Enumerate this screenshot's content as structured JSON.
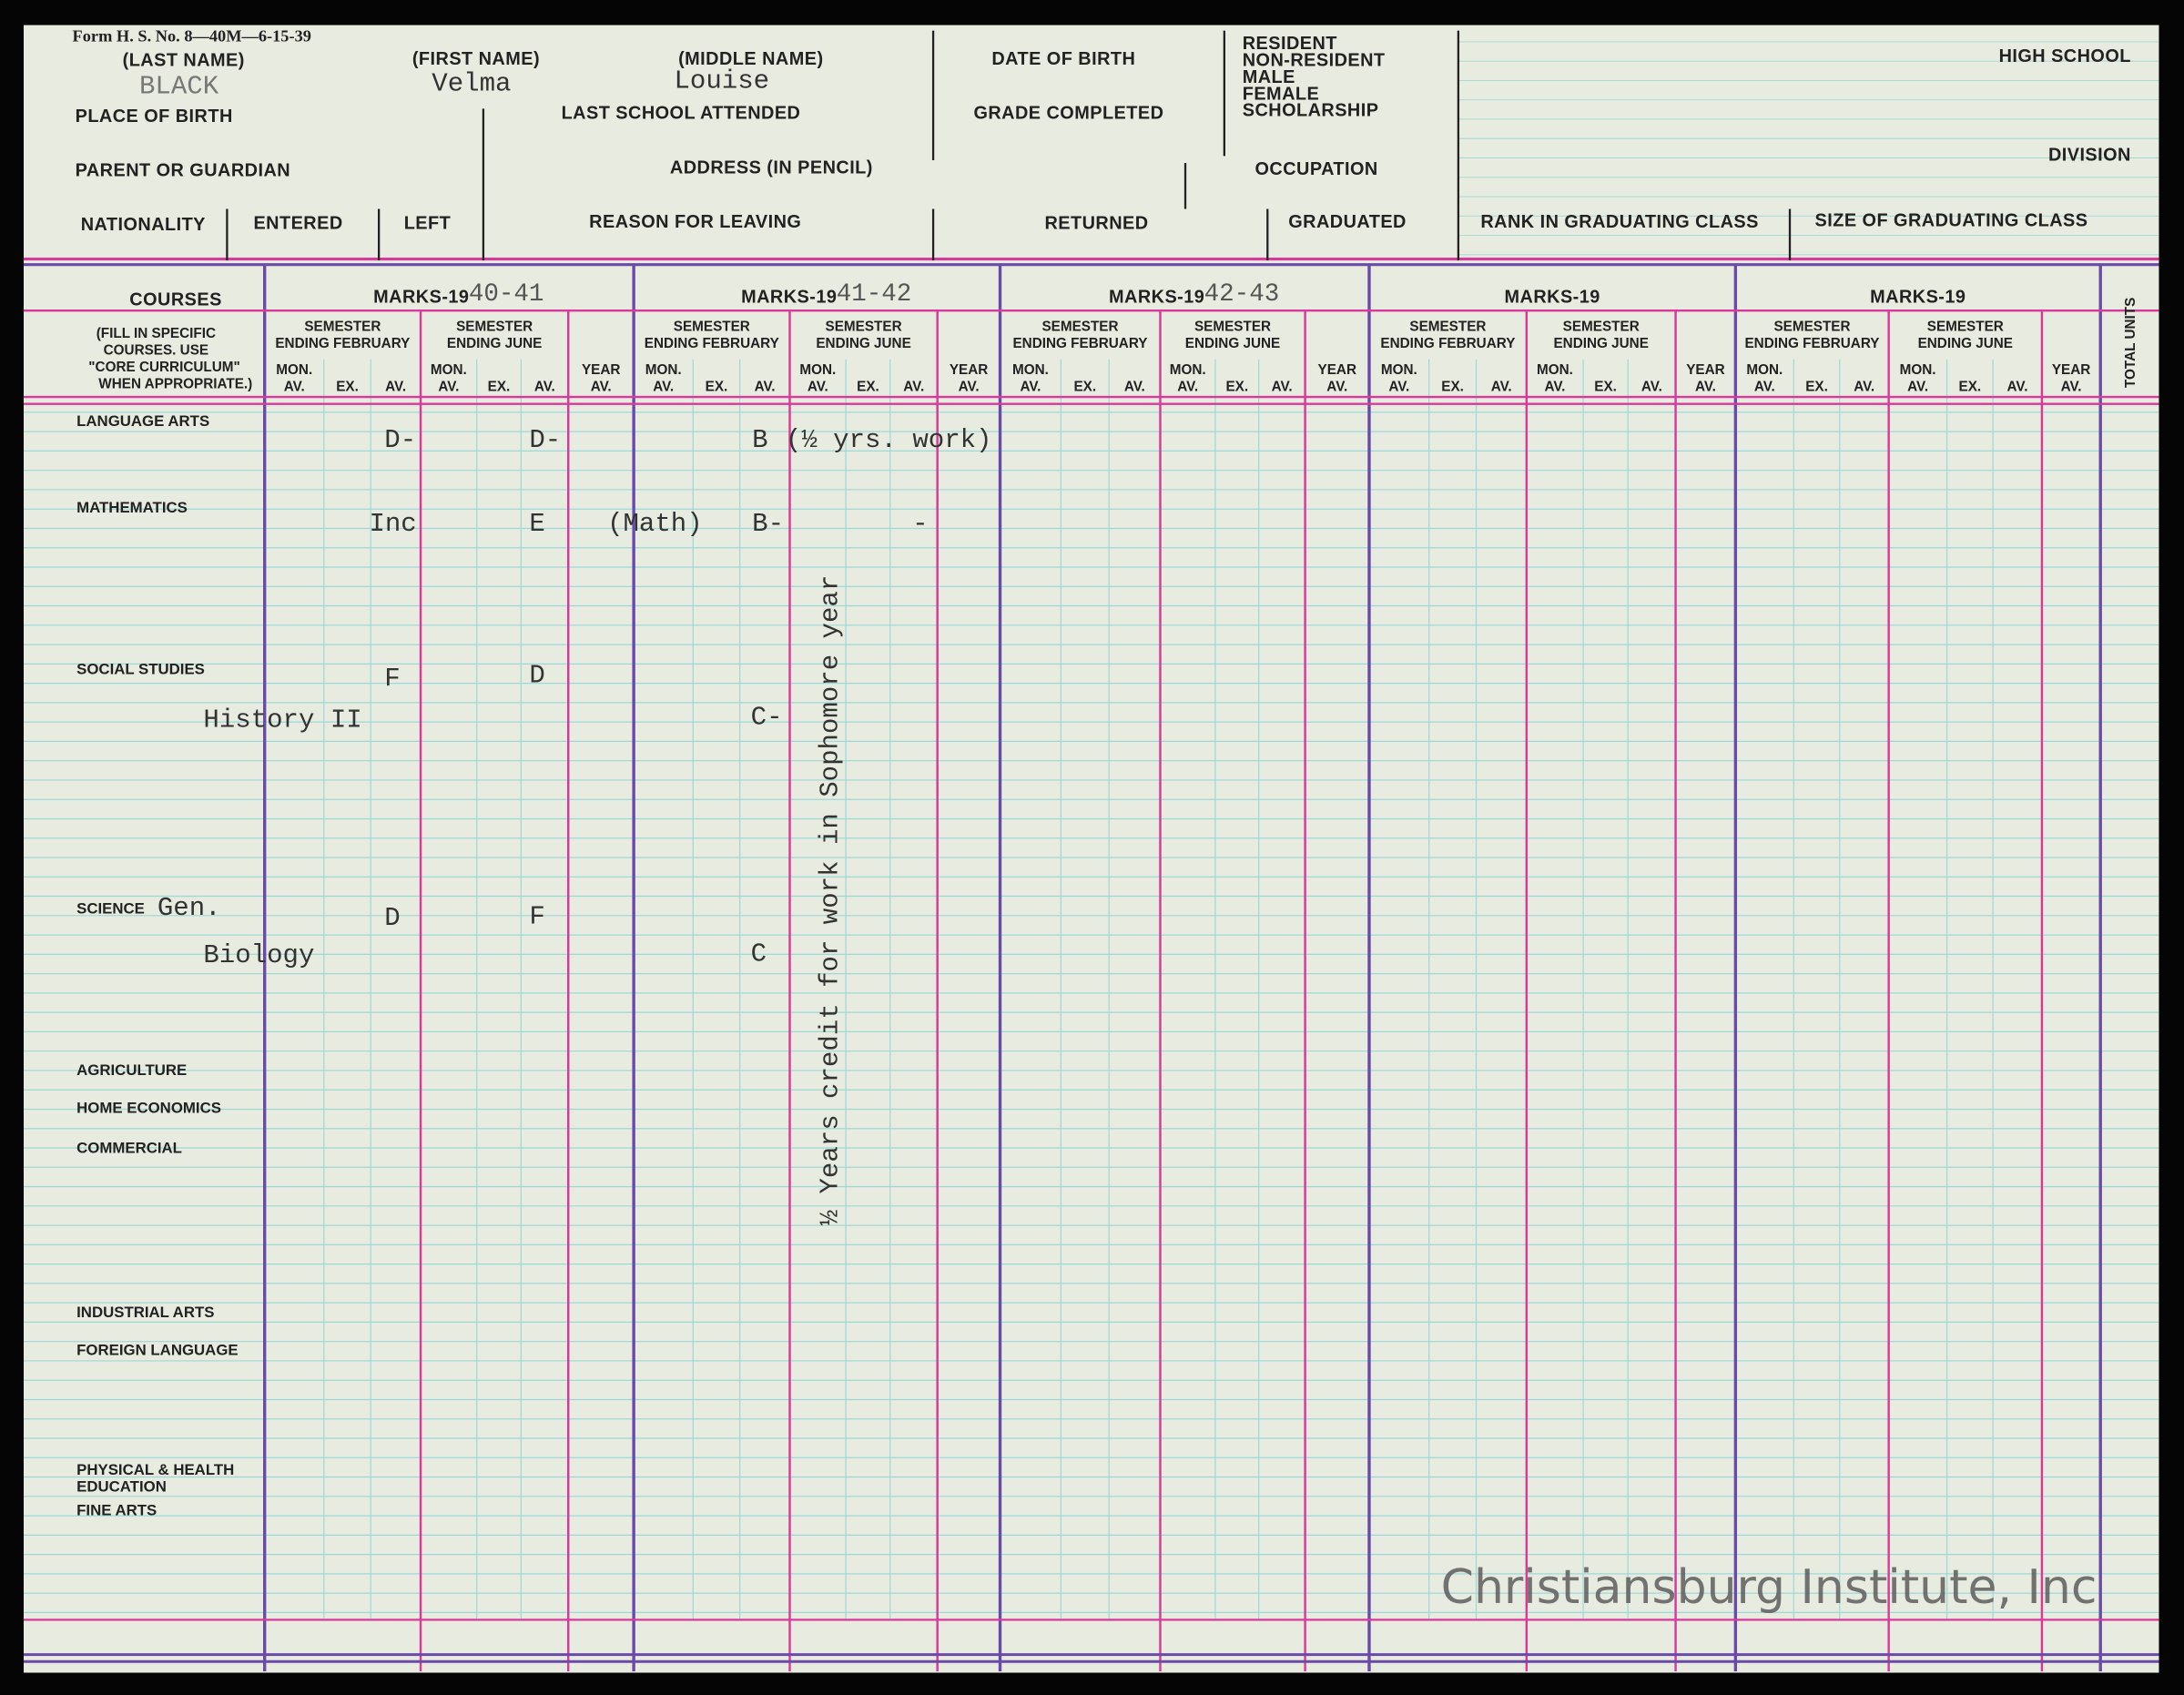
{
  "form_number": "Form H. S. No. 8—40M—6-15-39",
  "header": {
    "last_name": "(LAST NAME)",
    "first_name": "(FIRST NAME)",
    "middle_name": "(MIDDLE NAME)",
    "date_of_birth": "DATE OF BIRTH",
    "status_options": [
      "RESIDENT",
      "NON-RESIDENT",
      "MALE",
      "FEMALE",
      "SCHOLARSHIP"
    ],
    "high_school": "HIGH SCHOOL",
    "division": "DIVISION",
    "place_of_birth": "PLACE OF BIRTH",
    "last_school": "LAST SCHOOL ATTENDED",
    "grade_completed": "GRADE COMPLETED",
    "parent": "PARENT OR GUARDIAN",
    "address": "ADDRESS (IN PENCIL)",
    "occupation": "OCCUPATION",
    "nationality": "NATIONALITY",
    "entered": "ENTERED",
    "left": "LEFT",
    "reason": "REASON FOR LEAVING",
    "returned": "RETURNED",
    "graduated": "GRADUATED",
    "rank": "RANK IN GRADUATING CLASS",
    "size": "SIZE OF GRADUATING CLASS"
  },
  "student": {
    "last_name": "BLACK",
    "first_name": "Velma",
    "middle_name": "Louise"
  },
  "table": {
    "courses": "COURSES",
    "courses_note": [
      "(FILL IN SPECIFIC",
      "COURSES. USE",
      "\"CORE CURRICULUM\"",
      "WHEN APPROPRIATE.)"
    ],
    "total_units": "TOTAL UNITS",
    "marks_label": "MARKS-19",
    "years": [
      "40-41",
      "41-42",
      "42-43"
    ],
    "semester": "SEMESTER",
    "ending_february": "ENDING FEBRUARY",
    "ending_june": "ENDING JUNE",
    "mon": "MON.",
    "av": "AV.",
    "ex": "EX.",
    "year": "YEAR",
    "subjects": [
      "LANGUAGE ARTS",
      "MATHEMATICS",
      "SOCIAL STUDIES",
      "SCIENCE",
      "AGRICULTURE",
      "HOME ECONOMICS",
      "COMMERCIAL",
      "INDUSTRIAL ARTS",
      "FOREIGN LANGUAGE",
      "PHYSICAL & HEALTH",
      "EDUCATION",
      "FINE ARTS"
    ],
    "entries": [
      "D-",
      "D-",
      "B",
      "(½ yrs. work)",
      "Inc",
      "E",
      "(Math)",
      "B-",
      "-",
      "F",
      "D",
      "History II",
      "C-",
      "Gen.",
      "D",
      "F",
      "Biology",
      "C"
    ],
    "note": "½ Years credit for work in Sophomore year"
  },
  "watermark": "Christiansburg Institute, Inc"
}
